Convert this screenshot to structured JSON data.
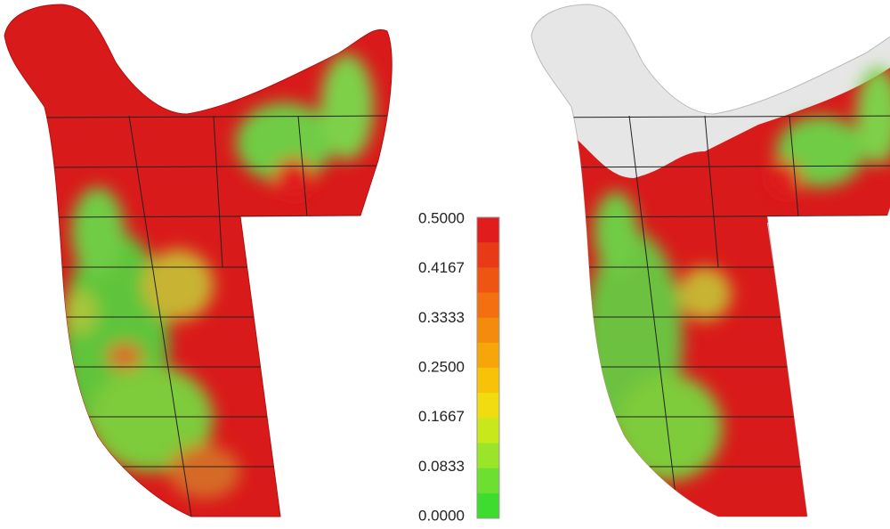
{
  "colorbar": {
    "ticks": [
      "0.5000",
      "0.4167",
      "0.3333",
      "0.2500",
      "0.1667",
      "0.0833",
      "0.0000"
    ]
  }
}
